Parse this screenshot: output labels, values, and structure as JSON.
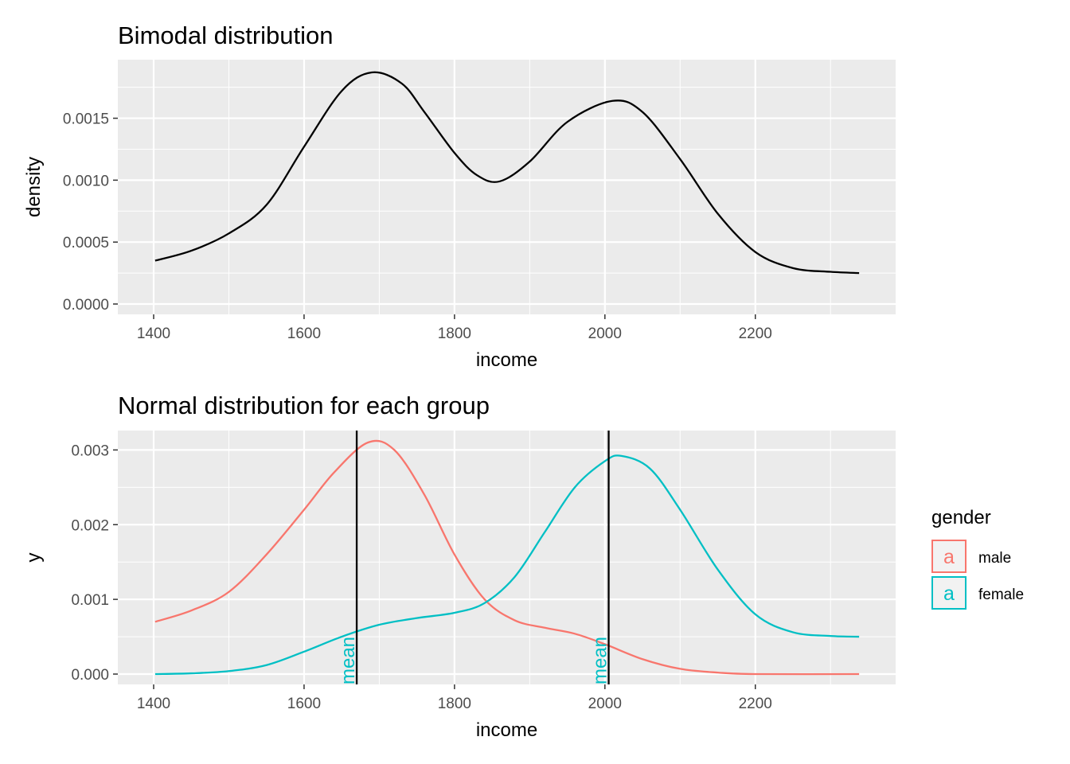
{
  "chart_data": [
    {
      "type": "line",
      "title": "Bimodal distribution",
      "xlabel": "income",
      "ylabel": "density",
      "xlim": [
        1400,
        2340
      ],
      "ylim": [
        0,
        0.00187
      ],
      "x_ticks": [
        1400,
        1600,
        1800,
        2000,
        2200
      ],
      "x_tick_labels": [
        "1400",
        "1600",
        "1800",
        "2000",
        "2200"
      ],
      "y_ticks": [
        0,
        0.0005,
        0.001,
        0.0015
      ],
      "y_tick_labels": [
        "0.0000",
        "0.0005",
        "0.0010",
        "0.0015"
      ],
      "grid": true,
      "series": [
        {
          "color": "#000000",
          "points": [
            [
              1402,
              0.00035
            ],
            [
              1450,
              0.00043
            ],
            [
              1500,
              0.00057
            ],
            [
              1550,
              0.0008
            ],
            [
              1600,
              0.00127
            ],
            [
              1650,
              0.00172
            ],
            [
              1690,
              0.00187
            ],
            [
              1730,
              0.00178
            ],
            [
              1760,
              0.00155
            ],
            [
              1800,
              0.00122
            ],
            [
              1830,
              0.00104
            ],
            [
              1860,
              0.00099
            ],
            [
              1900,
              0.00115
            ],
            [
              1950,
              0.00147
            ],
            [
              2010,
              0.00164
            ],
            [
              2050,
              0.00155
            ],
            [
              2100,
              0.00117
            ],
            [
              2150,
              0.00073
            ],
            [
              2200,
              0.00042
            ],
            [
              2250,
              0.00029
            ],
            [
              2300,
              0.00026
            ],
            [
              2338,
              0.00025
            ]
          ]
        }
      ]
    },
    {
      "type": "line",
      "title": "Normal distribution for each group",
      "xlabel": "income",
      "ylabel": "y",
      "xlim": [
        1400,
        2340
      ],
      "ylim": [
        0,
        0.0031
      ],
      "x_ticks": [
        1400,
        1600,
        1800,
        2000,
        2200
      ],
      "x_tick_labels": [
        "1400",
        "1600",
        "1800",
        "2000",
        "2200"
      ],
      "y_ticks": [
        0,
        0.001,
        0.002,
        0.003
      ],
      "y_tick_labels": [
        "0.000",
        "0.001",
        "0.002",
        "0.003"
      ],
      "grid": true,
      "series": [
        {
          "name": "male",
          "color": "#F8766D",
          "points": [
            [
              1402,
              0.0007
            ],
            [
              1450,
              0.00085
            ],
            [
              1500,
              0.0011
            ],
            [
              1550,
              0.0016
            ],
            [
              1600,
              0.0022
            ],
            [
              1640,
              0.0027
            ],
            [
              1685,
              0.0031
            ],
            [
              1720,
              0.003
            ],
            [
              1760,
              0.0024
            ],
            [
              1800,
              0.0016
            ],
            [
              1840,
              0.001
            ],
            [
              1880,
              0.00072
            ],
            [
              1920,
              0.00062
            ],
            [
              1960,
              0.00054
            ],
            [
              2000,
              0.0004
            ],
            [
              2050,
              0.0002
            ],
            [
              2100,
              7e-05
            ],
            [
              2150,
              2e-05
            ],
            [
              2200,
              0.0
            ],
            [
              2338,
              0.0
            ]
          ]
        },
        {
          "name": "female",
          "color": "#00BFC4",
          "points": [
            [
              1402,
              0.0
            ],
            [
              1450,
              1e-05
            ],
            [
              1500,
              4e-05
            ],
            [
              1550,
              0.00012
            ],
            [
              1600,
              0.0003
            ],
            [
              1650,
              0.0005
            ],
            [
              1700,
              0.00066
            ],
            [
              1750,
              0.00075
            ],
            [
              1800,
              0.00082
            ],
            [
              1840,
              0.00095
            ],
            [
              1880,
              0.0013
            ],
            [
              1920,
              0.0019
            ],
            [
              1960,
              0.0025
            ],
            [
              2000,
              0.00285
            ],
            [
              2022,
              0.00292
            ],
            [
              2060,
              0.00275
            ],
            [
              2100,
              0.0022
            ],
            [
              2150,
              0.0014
            ],
            [
              2200,
              0.0008
            ],
            [
              2250,
              0.00056
            ],
            [
              2300,
              0.00051
            ],
            [
              2338,
              0.0005
            ]
          ]
        }
      ],
      "vlines": [
        {
          "x": 1670,
          "color": "#000000",
          "label": "mean",
          "label_color": "#00BFC4"
        },
        {
          "x": 2005,
          "color": "#000000",
          "label": "mean",
          "label_color": "#00BFC4"
        }
      ],
      "legend": {
        "title": "gender",
        "position": "right",
        "key_text": "a",
        "items": [
          {
            "label": "male",
            "color": "#F8766D"
          },
          {
            "label": "female",
            "color": "#00BFC4"
          }
        ]
      }
    }
  ]
}
